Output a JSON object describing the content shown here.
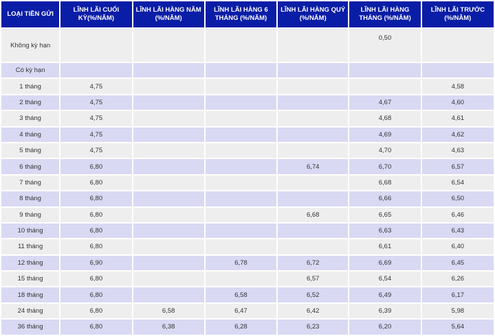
{
  "header": [
    "LOẠI TIỀN GỬI",
    "LĨNH LÃI CUỐI KỲ(%/NĂM)",
    "LĨNH LÃI HÀNG NĂM (%/NĂM)",
    "LĨNH LÃI HÀNG 6 THÁNG (%/NĂM)",
    "LĨNH LÃI HÀNG QUÝ (%/NĂM)",
    "LĨNH LÃI HÀNG THÁNG (%/NĂM)",
    "LĨNH LÃI TRƯỚC (%/NĂM)"
  ],
  "rows": [
    {
      "term": "Không kỳ hạn",
      "values": [
        "",
        "",
        "",
        "",
        "0,50",
        ""
      ]
    },
    {
      "term": "Có kỳ hạn",
      "values": [
        "",
        "",
        "",
        "",
        "",
        ""
      ]
    },
    {
      "term": "1 tháng",
      "values": [
        "4,75",
        "",
        "",
        "",
        "",
        "4,58"
      ]
    },
    {
      "term": "2 tháng",
      "values": [
        "4,75",
        "",
        "",
        "",
        "4,67",
        "4,60"
      ]
    },
    {
      "term": "3 tháng",
      "values": [
        "4,75",
        "",
        "",
        "",
        "4,68",
        "4,61"
      ]
    },
    {
      "term": "4 tháng",
      "values": [
        "4,75",
        "",
        "",
        "",
        "4,69",
        "4,62"
      ]
    },
    {
      "term": "5 tháng",
      "values": [
        "4,75",
        "",
        "",
        "",
        "4,70",
        "4,63"
      ]
    },
    {
      "term": "6 tháng",
      "values": [
        "6,80",
        "",
        "",
        "6,74",
        "6,70",
        "6,57"
      ]
    },
    {
      "term": "7 tháng",
      "values": [
        "6,80",
        "",
        "",
        "",
        "6,68",
        "6,54"
      ]
    },
    {
      "term": "8 tháng",
      "values": [
        "6,80",
        "",
        "",
        "",
        "6,66",
        "6,50"
      ]
    },
    {
      "term": "9 tháng",
      "values": [
        "6,80",
        "",
        "",
        "6,68",
        "6,65",
        "6,46"
      ]
    },
    {
      "term": "10 tháng",
      "values": [
        "6,80",
        "",
        "",
        "",
        "6,63",
        "6,43"
      ]
    },
    {
      "term": "11 tháng",
      "values": [
        "6,80",
        "",
        "",
        "",
        "6,61",
        "6,40"
      ]
    },
    {
      "term": "12 tháng",
      "values": [
        "6,90",
        "",
        "6,78",
        "6,72",
        "6,69",
        "6,45"
      ]
    },
    {
      "term": "15 tháng",
      "values": [
        "6,80",
        "",
        "",
        "6,57",
        "6,54",
        "6,26"
      ]
    },
    {
      "term": "18 tháng",
      "values": [
        "6,80",
        "",
        "6,58",
        "6,52",
        "6,49",
        "6,17"
      ]
    },
    {
      "term": "24 tháng",
      "values": [
        "6,80",
        "6,58",
        "6,47",
        "6,42",
        "6,39",
        "5,98"
      ]
    },
    {
      "term": "36 tháng",
      "values": [
        "6,80",
        "6,38",
        "6,28",
        "6,23",
        "6,20",
        "5,64"
      ]
    }
  ]
}
